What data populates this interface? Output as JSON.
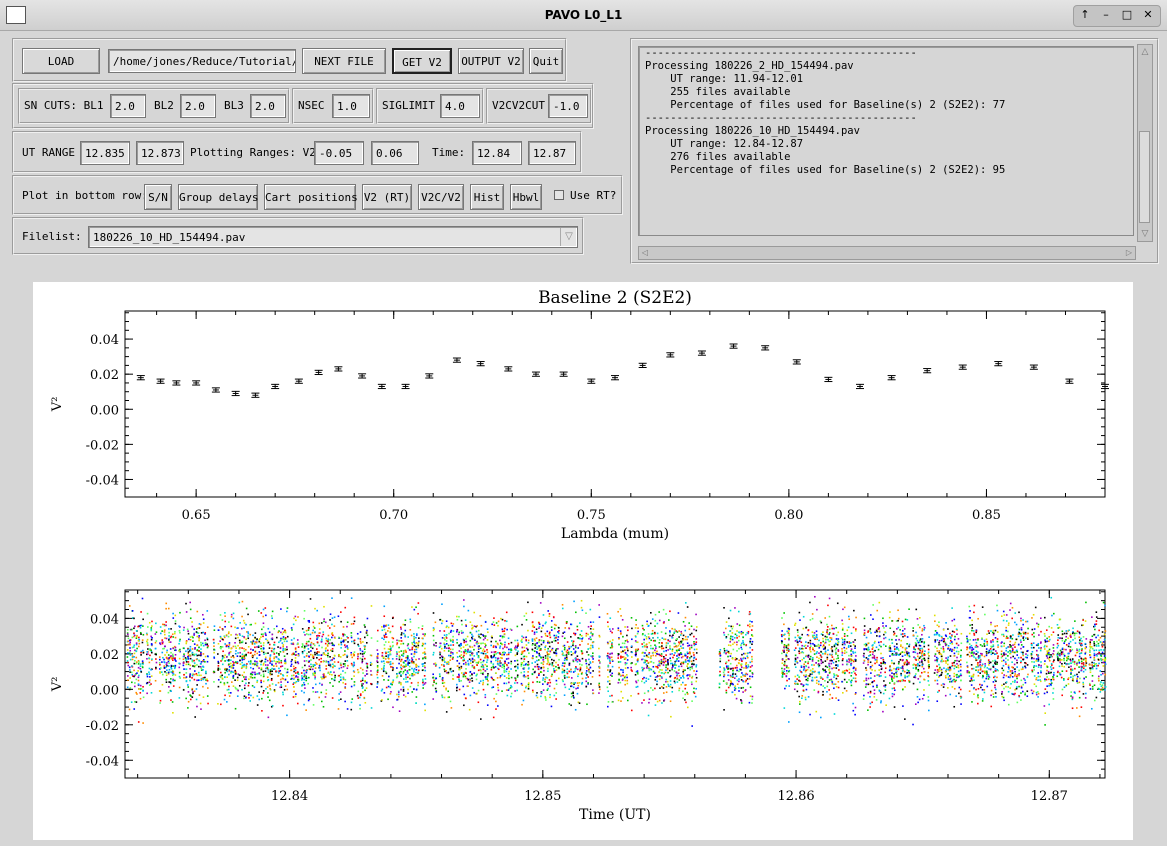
{
  "window": {
    "title": "PAVO L0_L1",
    "controls": [
      "↑",
      "–",
      "□",
      "✕"
    ]
  },
  "row1": {
    "load": "LOAD",
    "path": "/home/jones/Reduce/Tutorial/H",
    "next_file": "NEXT FILE",
    "get_v2": "GET V2",
    "output_v2": "OUTPUT V2",
    "quit": "Quit"
  },
  "row2": {
    "sn_cuts_label": "SN CUTS: BL1",
    "bl1": "2.0",
    "bl2_label": "BL2",
    "bl2": "2.0",
    "bl3_label": "BL3",
    "bl3": "2.0",
    "nsec_label": "NSEC",
    "nsec": "1.0",
    "siglimit_label": "SIGLIMIT",
    "siglimit": "4.0",
    "v2cv2cut_label": "V2CV2CUT",
    "v2cv2cut": "-1.0"
  },
  "row3": {
    "ut_range_label": "UT RANGE",
    "ut_min": "12.835",
    "ut_max": "12.873",
    "plotting_label": "Plotting Ranges: V2",
    "v2_min": "-0.05",
    "v2_max": "0.06",
    "time_label": "Time:",
    "time_min": "12.84",
    "time_max": "12.87"
  },
  "row4": {
    "label": "Plot in bottom row:",
    "buttons": [
      "S/N",
      "Group delays",
      "Cart positions",
      "V2 (RT)",
      "V2C/V2",
      "Hist",
      "Hbwl"
    ],
    "use_rt_label": "Use RT?",
    "use_rt_checked": false
  },
  "row5": {
    "label": "Filelist:",
    "selected": "180226_10_HD_154494.pav"
  },
  "log": {
    "lines": [
      "-------------------------------------------",
      "Processing 180226_2_HD_154494.pav",
      "",
      "    UT range: 11.94-12.01",
      "    255 files available",
      "    Percentage of files used for Baseline(s) 2 (S2E2): 77",
      "",
      "-------------------------------------------",
      "Processing 180226_10_HD_154494.pav",
      "",
      "    UT range: 12.84-12.87",
      "    276 files available",
      "    Percentage of files used for Baseline(s) 2 (S2E2): 95"
    ]
  },
  "chart_data": [
    {
      "type": "scatter",
      "title": "Baseline 2 (S2E2)",
      "xlabel": "Lambda (mum)",
      "ylabel": "V²",
      "xlim": [
        0.632,
        0.88
      ],
      "ylim": [
        -0.05,
        0.056
      ],
      "xticks": [
        "0.65",
        "0.70",
        "0.75",
        "0.80",
        "0.85"
      ],
      "yticks": [
        "0.04",
        "0.02",
        "0.00",
        "-0.02",
        "-0.04"
      ],
      "x": [
        0.636,
        0.641,
        0.645,
        0.65,
        0.655,
        0.66,
        0.665,
        0.67,
        0.676,
        0.681,
        0.686,
        0.692,
        0.697,
        0.703,
        0.709,
        0.716,
        0.722,
        0.729,
        0.736,
        0.743,
        0.75,
        0.756,
        0.763,
        0.77,
        0.778,
        0.786,
        0.794,
        0.802,
        0.81,
        0.818,
        0.826,
        0.835,
        0.844,
        0.853,
        0.862,
        0.871,
        0.88
      ],
      "values": [
        0.018,
        0.016,
        0.015,
        0.015,
        0.011,
        0.009,
        0.008,
        0.013,
        0.016,
        0.021,
        0.023,
        0.019,
        0.013,
        0.013,
        0.019,
        0.028,
        0.026,
        0.023,
        0.02,
        0.02,
        0.016,
        0.018,
        0.025,
        0.031,
        0.032,
        0.036,
        0.035,
        0.027,
        0.017,
        0.013,
        0.018,
        0.022,
        0.024,
        0.026,
        0.024,
        0.016,
        0.013
      ],
      "error": 0.0012
    },
    {
      "type": "scatter",
      "title": "",
      "xlabel": "Time (UT)",
      "ylabel": "V²",
      "xlim": [
        12.8335,
        12.8722
      ],
      "ylim": [
        -0.05,
        0.056
      ],
      "xticks": [
        "12.84",
        "12.85",
        "12.86",
        "12.87"
      ],
      "yticks": [
        "0.04",
        "0.02",
        "0.00",
        "-0.02",
        "-0.04"
      ],
      "gaps": [
        [
          12.8368,
          12.8373
        ],
        [
          12.8384,
          12.8387
        ],
        [
          12.8405,
          12.8408
        ],
        [
          12.8421,
          12.8424
        ],
        [
          12.8458,
          12.8462
        ],
        [
          12.8475,
          12.8478
        ],
        [
          12.856,
          12.8569
        ],
        [
          12.8571,
          12.8573
        ],
        [
          12.8582,
          12.8593
        ],
        [
          12.8593,
          12.8591
        ],
        [
          12.86,
          12.8604
        ],
        [
          12.8633,
          12.8638
        ],
        [
          12.8654,
          12.8663
        ],
        [
          12.8668,
          12.867
        ],
        [
          12.8698,
          12.8701
        ],
        [
          12.8705,
          12.871
        ]
      ],
      "empty_ranges": [
        [
          12.8561,
          12.8568
        ],
        [
          12.8583,
          12.8592
        ],
        [
          12.8597,
          12.8599
        ]
      ],
      "mean": 0.018,
      "spread": 0.012,
      "colors": [
        "#000000",
        "#ff0000",
        "#0000ff",
        "#00c000",
        "#00d8d8",
        "#e0e000",
        "#ff8c00",
        "#a000c0",
        "#60ff60",
        "#00a0ff"
      ]
    }
  ]
}
